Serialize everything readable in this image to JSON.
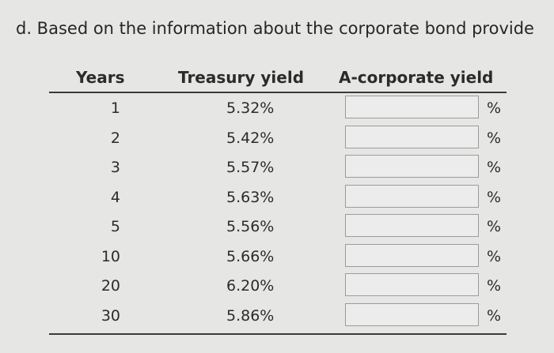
{
  "question": {
    "text": "d. Based on the information about the corporate bond provide"
  },
  "table": {
    "headers": {
      "years": "Years",
      "treasury": "Treasury yield",
      "corporate": "A-corporate yield"
    },
    "percent_symbol": "%",
    "rows": [
      {
        "year": "1",
        "treasury": "5.32%",
        "corporate_value": ""
      },
      {
        "year": "2",
        "treasury": "5.42%",
        "corporate_value": ""
      },
      {
        "year": "3",
        "treasury": "5.57%",
        "corporate_value": ""
      },
      {
        "year": "4",
        "treasury": "5.63%",
        "corporate_value": ""
      },
      {
        "year": "5",
        "treasury": "5.56%",
        "corporate_value": ""
      },
      {
        "year": "10",
        "treasury": "5.66%",
        "corporate_value": ""
      },
      {
        "year": "20",
        "treasury": "6.20%",
        "corporate_value": ""
      },
      {
        "year": "30",
        "treasury": "5.86%",
        "corporate_value": ""
      }
    ]
  }
}
